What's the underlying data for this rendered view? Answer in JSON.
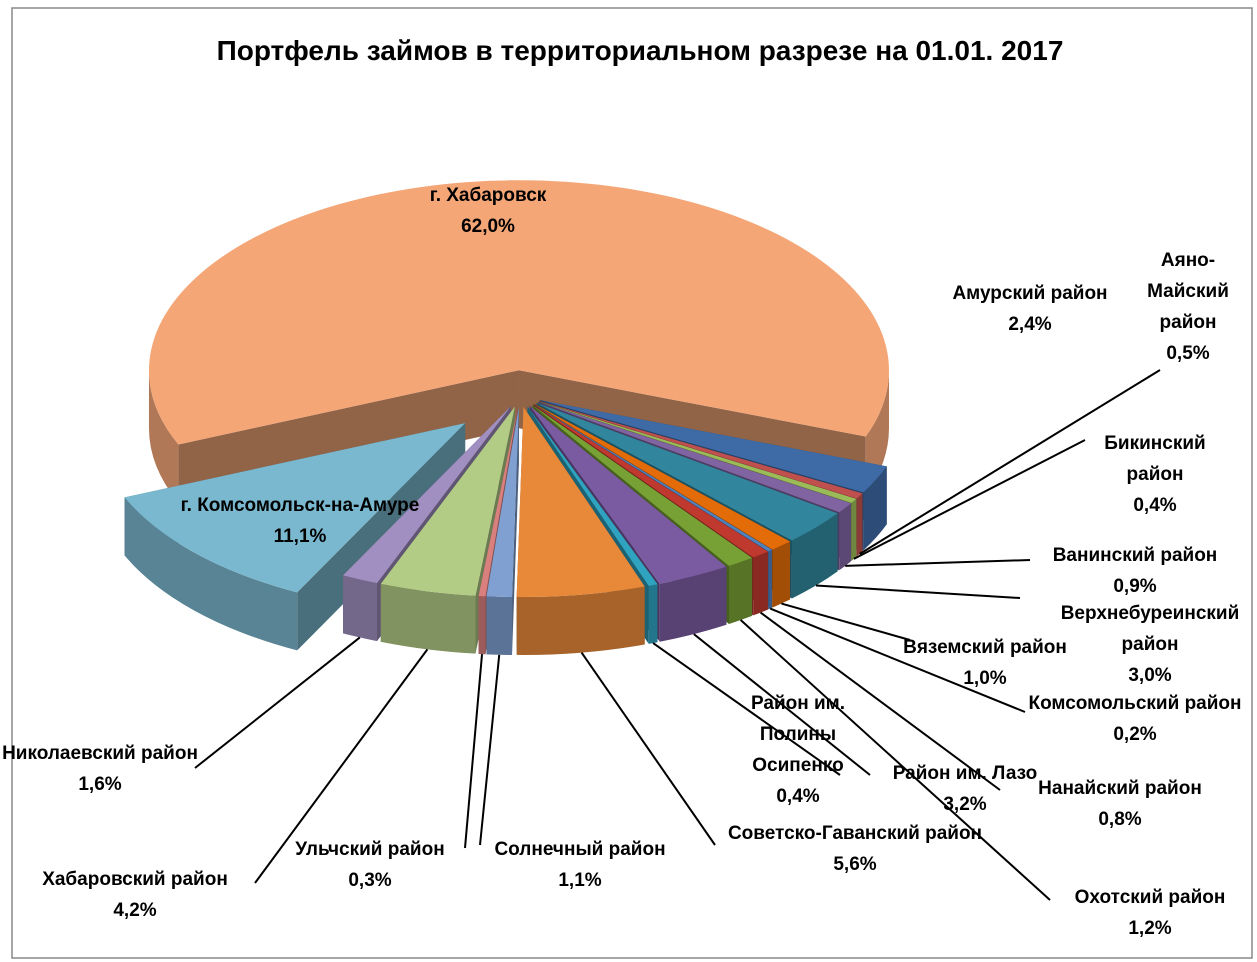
{
  "chart_data": {
    "type": "pie3d",
    "title": "Портфель займов в территориальном разрезе на 01.01. 2017",
    "categories": [
      "г. Хабаровск",
      "Амурский район",
      "Аяно-Майский район",
      "Бикинский район",
      "Ванинский район",
      "Верхнебуреинский район",
      "Вяземский район",
      "Комсомольский район",
      "Нанайский район",
      "Охотский район",
      "Район им. Лазо",
      "Район им. Полины Осипенко",
      "Советско-Гаванский район",
      "Солнечный район",
      "Ульчский район",
      "Хабаровский район",
      "Николаевский район",
      "г. Комсомольск-на-Амуре"
    ],
    "values": [
      62.0,
      2.4,
      0.5,
      0.4,
      0.9,
      3.0,
      1.0,
      0.2,
      0.8,
      1.2,
      3.2,
      0.4,
      5.6,
      1.1,
      0.3,
      4.2,
      1.6,
      11.1
    ],
    "value_labels": [
      "62,0%",
      "2,4%",
      "0,5%",
      "0,4%",
      "0,9%",
      "3,0%",
      "1,0%",
      "0,2%",
      "0,8%",
      "1,2%",
      "3,2%",
      "0,4%",
      "5,6%",
      "1,1%",
      "0,3%",
      "4,2%",
      "1,6%",
      "11,1%"
    ],
    "colors": [
      "#f4a677",
      "#3e6aa6",
      "#c0504d",
      "#9bbb59",
      "#8064a2",
      "#31859c",
      "#e36c09",
      "#4f81bd",
      "#c0392f",
      "#77a035",
      "#7a5aa0",
      "#2fa3c0",
      "#e8893a",
      "#7fa0d0",
      "#d9807e",
      "#b2cc85",
      "#a08fc0",
      "#7ab8cf"
    ]
  }
}
